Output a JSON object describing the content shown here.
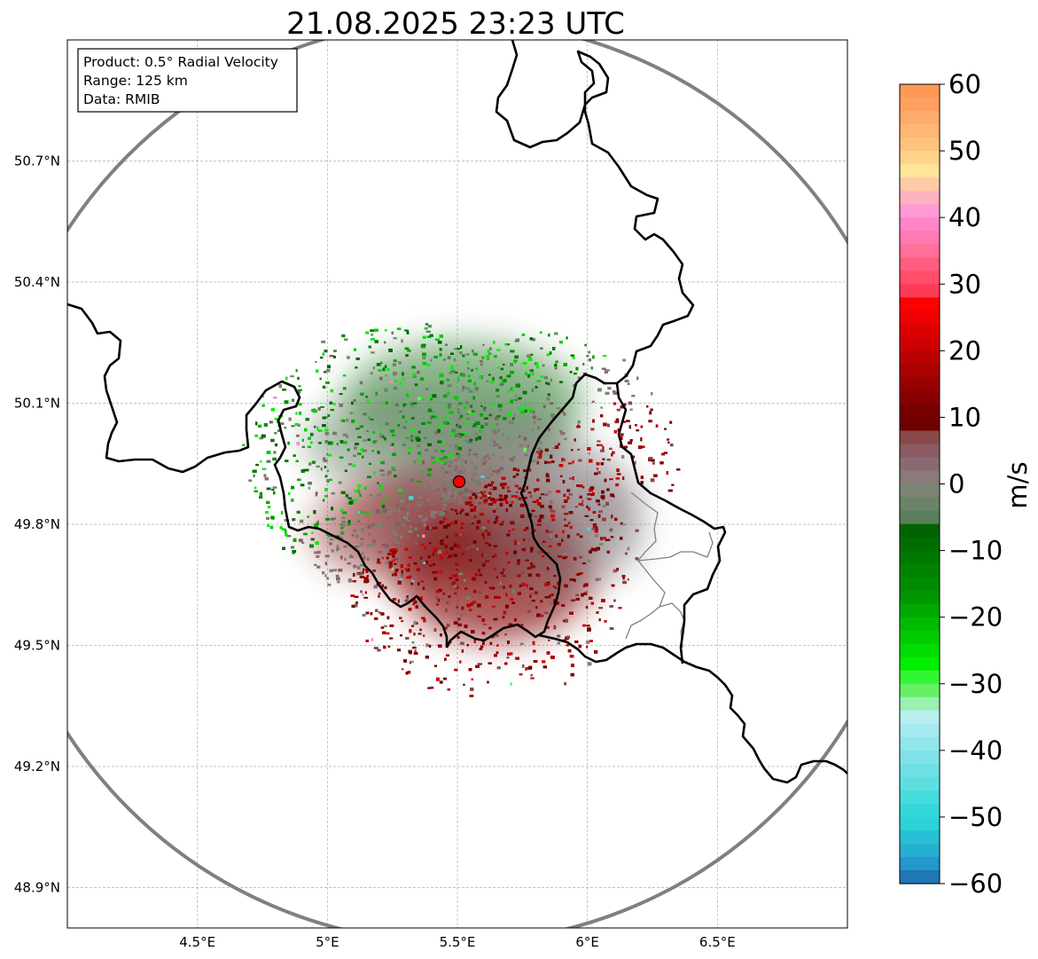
{
  "chart_data": {
    "type": "heatmap",
    "title": "21.08.2025 23:23 UTC",
    "info_lines": [
      "Product: 0.5° Radial Velocity",
      "Range: 125 km",
      "Data: RMIB"
    ],
    "x_axis": {
      "range": [
        4.0,
        7.0
      ],
      "ticks": [
        4.5,
        5.0,
        5.5,
        6.0,
        6.5
      ],
      "tick_labels": [
        "4.5°E",
        "5°E",
        "5.5°E",
        "6°E",
        "6.5°E"
      ]
    },
    "y_axis": {
      "range": [
        48.8,
        51.0
      ],
      "ticks": [
        48.9,
        49.2,
        49.5,
        49.8,
        50.1,
        50.4,
        50.7
      ],
      "tick_labels": [
        "48.9°N",
        "49.2°N",
        "49.5°N",
        "49.8°N",
        "50.1°N",
        "50.4°N",
        "50.7°N"
      ]
    },
    "grid": true,
    "radar_site": {
      "lon": 5.505,
      "lat": 49.915
    },
    "range_ring_km": 125,
    "colorbar": {
      "label": "m/s",
      "range": [
        -60,
        60
      ],
      "ticks": [
        60,
        50,
        40,
        30,
        20,
        10,
        0,
        -10,
        -20,
        -30,
        -40,
        -50,
        -60
      ],
      "tick_labels": [
        "60",
        "50",
        "40",
        "30",
        "20",
        "10",
        "0",
        "−10",
        "−20",
        "−30",
        "−40",
        "−50",
        "−60"
      ],
      "bands": [
        {
          "from": 58,
          "to": 60,
          "color": "#ff9955"
        },
        {
          "from": 56,
          "to": 58,
          "color": "#ffa060"
        },
        {
          "from": 54,
          "to": 56,
          "color": "#ffab6b"
        },
        {
          "from": 52,
          "to": 54,
          "color": "#ffb774"
        },
        {
          "from": 50,
          "to": 52,
          "color": "#ffc27e"
        },
        {
          "from": 48,
          "to": 50,
          "color": "#ffd488"
        },
        {
          "from": 46,
          "to": 48,
          "color": "#ffe59a"
        },
        {
          "from": 44,
          "to": 46,
          "color": "#ffcaa8"
        },
        {
          "from": 42,
          "to": 44,
          "color": "#ffb3c0"
        },
        {
          "from": 40,
          "to": 42,
          "color": "#ff9ad2"
        },
        {
          "from": 38,
          "to": 40,
          "color": "#ff85c8"
        },
        {
          "from": 36,
          "to": 38,
          "color": "#ff7ab0"
        },
        {
          "from": 34,
          "to": 36,
          "color": "#ff6f98"
        },
        {
          "from": 32,
          "to": 34,
          "color": "#ff5c80"
        },
        {
          "from": 30,
          "to": 32,
          "color": "#ff4d6a"
        },
        {
          "from": 28,
          "to": 30,
          "color": "#ff3a55"
        },
        {
          "from": 26,
          "to": 28,
          "color": "#ff0000"
        },
        {
          "from": 24,
          "to": 26,
          "color": "#ee0000"
        },
        {
          "from": 22,
          "to": 24,
          "color": "#dd0000"
        },
        {
          "from": 20,
          "to": 22,
          "color": "#cc0000"
        },
        {
          "from": 18,
          "to": 20,
          "color": "#bb0000"
        },
        {
          "from": 16,
          "to": 18,
          "color": "#aa0000"
        },
        {
          "from": 14,
          "to": 16,
          "color": "#990000"
        },
        {
          "from": 12,
          "to": 14,
          "color": "#880000"
        },
        {
          "from": 10,
          "to": 12,
          "color": "#770000"
        },
        {
          "from": 8,
          "to": 10,
          "color": "#6e0000"
        },
        {
          "from": 6,
          "to": 8,
          "color": "#884848"
        },
        {
          "from": 4,
          "to": 6,
          "color": "#8a5a60"
        },
        {
          "from": 2,
          "to": 4,
          "color": "#8a6a72"
        },
        {
          "from": 0,
          "to": 2,
          "color": "#8b7a7a"
        },
        {
          "from": -2,
          "to": 0,
          "color": "#7c8474"
        },
        {
          "from": -4,
          "to": -2,
          "color": "#6a8466"
        },
        {
          "from": -6,
          "to": -4,
          "color": "#5a7f5a"
        },
        {
          "from": -8,
          "to": -6,
          "color": "#006400"
        },
        {
          "from": -10,
          "to": -8,
          "color": "#006e00"
        },
        {
          "from": -12,
          "to": -10,
          "color": "#007800"
        },
        {
          "from": -14,
          "to": -12,
          "color": "#008300"
        },
        {
          "from": -16,
          "to": -14,
          "color": "#008c00"
        },
        {
          "from": -18,
          "to": -16,
          "color": "#009600"
        },
        {
          "from": -20,
          "to": -18,
          "color": "#00a800"
        },
        {
          "from": -22,
          "to": -20,
          "color": "#00bb00"
        },
        {
          "from": -24,
          "to": -22,
          "color": "#00cc00"
        },
        {
          "from": -26,
          "to": -24,
          "color": "#00dd00"
        },
        {
          "from": -28,
          "to": -26,
          "color": "#00ee00"
        },
        {
          "from": -30,
          "to": -28,
          "color": "#33f633"
        },
        {
          "from": -32,
          "to": -30,
          "color": "#66f066"
        },
        {
          "from": -34,
          "to": -32,
          "color": "#99f0b0"
        },
        {
          "from": -36,
          "to": -34,
          "color": "#b8eef0"
        },
        {
          "from": -38,
          "to": -36,
          "color": "#a5eaf0"
        },
        {
          "from": -40,
          "to": -38,
          "color": "#90e6ec"
        },
        {
          "from": -42,
          "to": -40,
          "color": "#80e2e8"
        },
        {
          "from": -44,
          "to": -42,
          "color": "#6ee0e4"
        },
        {
          "from": -46,
          "to": -44,
          "color": "#5ddfe2"
        },
        {
          "from": -48,
          "to": -46,
          "color": "#45dcde"
        },
        {
          "from": -50,
          "to": -48,
          "color": "#34d8da"
        },
        {
          "from": -52,
          "to": -50,
          "color": "#2ad4d8"
        },
        {
          "from": -54,
          "to": -52,
          "color": "#28c0d4"
        },
        {
          "from": -56,
          "to": -54,
          "color": "#26b0d0"
        },
        {
          "from": -58,
          "to": -56,
          "color": "#2497cc"
        },
        {
          "from": -60,
          "to": -58,
          "color": "#1f77b4"
        }
      ]
    },
    "data_summary": {
      "inbound_green_region": "north of radar site, ~49.9–50.3°N",
      "outbound_red_region": "south/southwest of radar site, ~49.4–49.9°N",
      "near_zero_gray_band": "along NE–SW diagonal through radar site"
    }
  }
}
